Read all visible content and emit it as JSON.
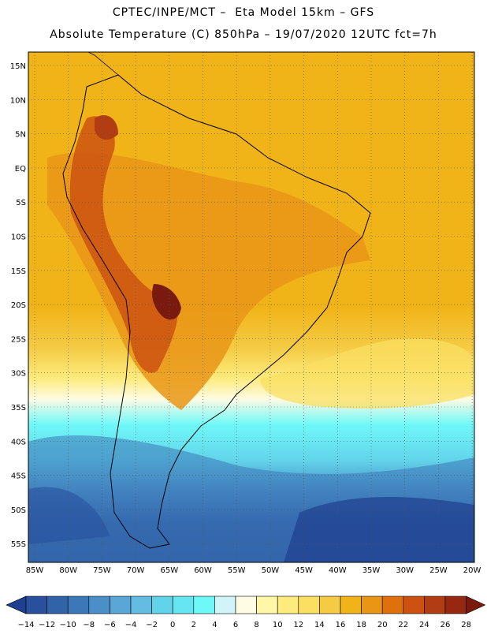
{
  "header": {
    "line1": "CPTEC/INPE/MCT –  Eta Model 15km – GFS",
    "line2": "Absolute Temperature (C) 850hPa – 19/07/2020 12UTC fct=7h"
  },
  "axes": {
    "lat_labels": [
      "15N",
      "10N",
      "5N",
      "EQ",
      "5S",
      "10S",
      "15S",
      "20S",
      "25S",
      "30S",
      "35S",
      "40S",
      "45S",
      "50S",
      "55S"
    ],
    "lon_labels": [
      "85W",
      "80W",
      "75W",
      "70W",
      "65W",
      "60W",
      "55W",
      "50W",
      "45W",
      "40W",
      "35W",
      "30W",
      "25W",
      "20W"
    ],
    "grid": "dotted"
  },
  "colorbar": {
    "labels": [
      "-14",
      "-12",
      "-10",
      "-8",
      "-6",
      "-4",
      "-2",
      "0",
      "2",
      "4",
      "6",
      "8",
      "10",
      "12",
      "14",
      "16",
      "18",
      "20",
      "22",
      "24",
      "26",
      "28"
    ],
    "colors": [
      "#1f3f8f",
      "#28509f",
      "#3163a8",
      "#3c78b8",
      "#4a8fc8",
      "#5aa6d6",
      "#63bde2",
      "#62d4ea",
      "#66e6f2",
      "#6ff8f8",
      "#d0f4f8",
      "#fffbe4",
      "#fff6a8",
      "#fdeb7e",
      "#fadf62",
      "#f5cb44",
      "#f0b418",
      "#e99516",
      "#e0700d",
      "#cd5212",
      "#b23d12",
      "#95280f",
      "#7a1a0f"
    ]
  }
}
